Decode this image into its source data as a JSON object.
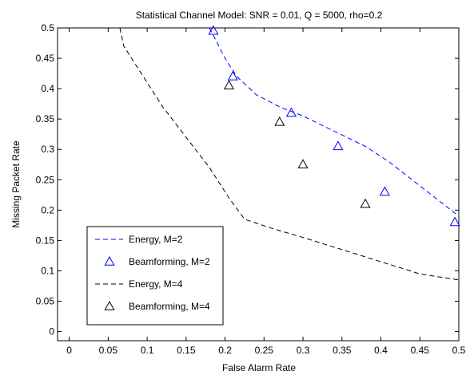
{
  "chart_data": {
    "type": "line",
    "title": "Statistical Channel Model: SNR = 0.01,  Q = 5000, rho=0.2",
    "xlabel": "False Alarm Rate",
    "ylabel": "Missing Packet Rate",
    "xlim": [
      -0.015,
      0.5
    ],
    "ylim": [
      -0.015,
      0.5
    ],
    "xticks": [
      0,
      0.05,
      0.1,
      0.15,
      0.2,
      0.25,
      0.3,
      0.35,
      0.4,
      0.45,
      0.5
    ],
    "xtick_labels": [
      "0",
      "0.05",
      "0.1",
      "0.15",
      "0.2",
      "0.25",
      "0.3",
      "0.35",
      "0.4",
      "0.45",
      "0.5"
    ],
    "yticks": [
      0,
      0.05,
      0.1,
      0.15,
      0.2,
      0.25,
      0.3,
      0.35,
      0.4,
      0.45,
      0.5
    ],
    "ytick_labels": [
      "0",
      "0.05",
      "0.1",
      "0.15",
      "0.2",
      "0.25",
      "0.3",
      "0.35",
      "0.4",
      "0.45",
      "0.5"
    ],
    "grid": false,
    "legend_position": "bottom-left",
    "series": [
      {
        "name": "Energy, M=2",
        "style": "dashed-line",
        "color": "#0000ff",
        "x": [
          0.18,
          0.2,
          0.215,
          0.24,
          0.27,
          0.3,
          0.34,
          0.38,
          0.41,
          0.44,
          0.47,
          0.5
        ],
        "y": [
          0.5,
          0.45,
          0.42,
          0.39,
          0.37,
          0.355,
          0.33,
          0.305,
          0.28,
          0.25,
          0.22,
          0.19
        ]
      },
      {
        "name": "Beamforming, M=2",
        "style": "triangle-markers",
        "color": "#0000ff",
        "x": [
          0.185,
          0.21,
          0.285,
          0.345,
          0.405,
          0.495
        ],
        "y": [
          0.495,
          0.42,
          0.36,
          0.305,
          0.23,
          0.18
        ]
      },
      {
        "name": "Energy, M=4",
        "style": "dashed-line",
        "color": "#000000",
        "x": [
          0.065,
          0.07,
          0.09,
          0.12,
          0.15,
          0.18,
          0.205,
          0.225,
          0.26,
          0.3,
          0.35,
          0.4,
          0.45,
          0.5
        ],
        "y": [
          0.5,
          0.47,
          0.43,
          0.37,
          0.32,
          0.27,
          0.22,
          0.185,
          0.17,
          0.155,
          0.135,
          0.115,
          0.095,
          0.085
        ]
      },
      {
        "name": "Beamforming, M=4",
        "style": "triangle-markers",
        "color": "#000000",
        "x": [
          0.205,
          0.27,
          0.3,
          0.38
        ],
        "y": [
          0.405,
          0.345,
          0.275,
          0.21
        ]
      }
    ]
  }
}
